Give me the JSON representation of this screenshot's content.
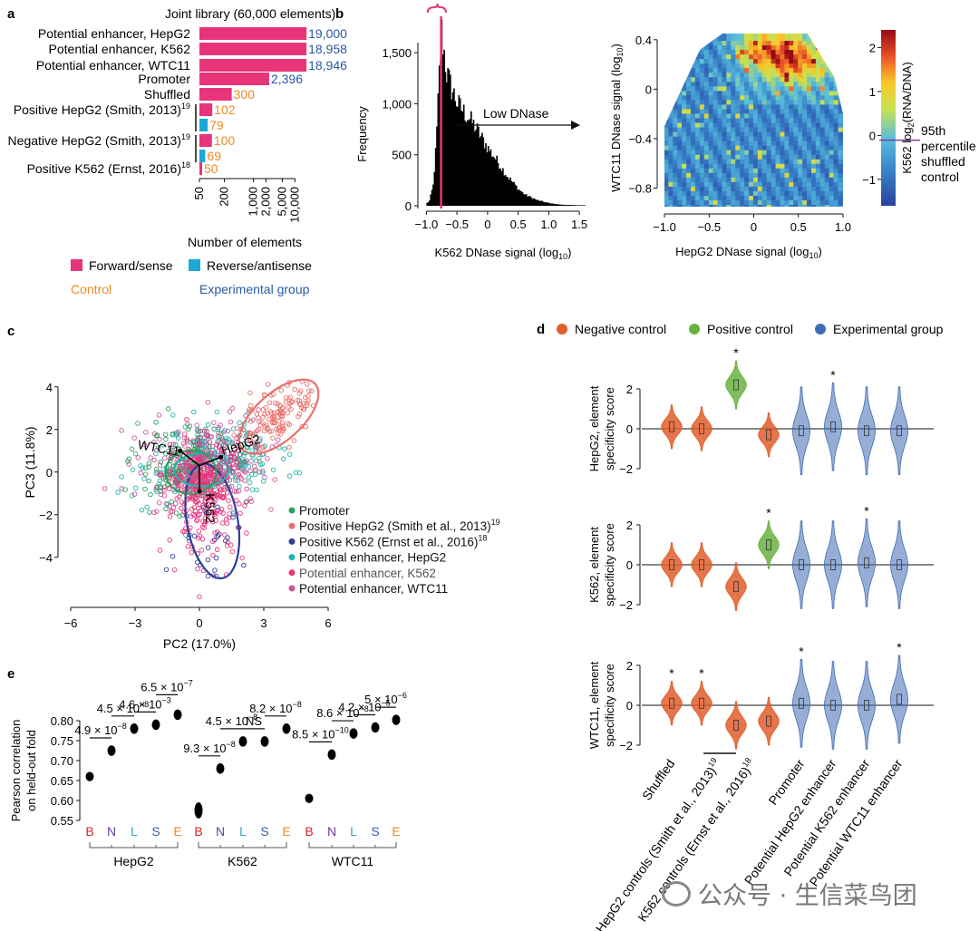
{
  "panel_labels": {
    "a": "a",
    "b": "b",
    "c": "c",
    "d": "d",
    "e": "e"
  },
  "panel_a": {
    "title": "Joint library (60,000 elements)",
    "xlabel": "Number of elements",
    "ticks": [
      "50",
      "200",
      "1,000",
      "2,000",
      "5,000",
      "10,000"
    ],
    "rows": [
      {
        "label": "Potential enhancer, HepG2",
        "sup": "",
        "forward": 19000,
        "reverse": null,
        "fwd_text": "19,000",
        "rev_text": "",
        "group": "experimental"
      },
      {
        "label": "Potential enhancer, K562",
        "sup": "",
        "forward": 18958,
        "reverse": null,
        "fwd_text": "18,958",
        "rev_text": "",
        "group": "experimental"
      },
      {
        "label": "Potential enhancer, WTC11",
        "sup": "",
        "forward": 18946,
        "reverse": null,
        "fwd_text": "18,946",
        "rev_text": "",
        "group": "experimental"
      },
      {
        "label": "Promoter",
        "sup": "",
        "forward": 2396,
        "reverse": null,
        "fwd_text": "2,396",
        "rev_text": "",
        "group": "experimental"
      },
      {
        "label": "Shuffled",
        "sup": "",
        "forward": 300,
        "reverse": null,
        "fwd_text": "300",
        "rev_text": "",
        "group": "control"
      },
      {
        "label": "Positive HepG2 (Smith, 2013)",
        "sup": "19",
        "forward": 102,
        "reverse": 79,
        "fwd_text": "102",
        "rev_text": "79",
        "group": "control"
      },
      {
        "label": "Negative HepG2 (Smith, 2013)",
        "sup": "19",
        "forward": 100,
        "reverse": 69,
        "fwd_text": "100",
        "rev_text": "69",
        "group": "control"
      },
      {
        "label": "Positive K562 (Ernst, 2016)",
        "sup": "18",
        "forward": 50,
        "reverse": null,
        "fwd_text": "50",
        "rev_text": "",
        "group": "control"
      }
    ],
    "legend": {
      "forward": "Forward/sense",
      "reverse": "Reverse/antisense",
      "control": "Control",
      "experimental": "Experimental group"
    }
  },
  "panel_b": {
    "hist_ylabel": "Frequency",
    "hist_xlabel": "K562 DNase signal (log",
    "hist_xlabel_sub": "10",
    "hist_xlabel_end": ")",
    "hist_yticks": [
      "0",
      "500",
      "1,000",
      "1,500"
    ],
    "hist_xticks": [
      "−1.0",
      "−0.5",
      "0",
      "0.5",
      "1.0",
      "1.5"
    ],
    "low_dnase": "Low DNase",
    "heat_xlabel": "HepG2 DNase signal (log",
    "heat_xlabel_sub": "10",
    "heat_ylabel": "WTC11 DNase signal (log",
    "heat_ylabel_sub": "10",
    "heat_xticks": [
      "−1.0",
      "−0.5",
      "0",
      "0.5",
      "1.0"
    ],
    "heat_yticks": [
      "0.4",
      "0",
      "−0.4",
      "−0.8"
    ],
    "cbar_ticks": [
      "2",
      "1",
      "0",
      "−1"
    ],
    "cbar_label": "K562 log",
    "cbar_label_sub": "2",
    "cbar_label_end": "(RNA/DNA)",
    "percentile_note": [
      "95th",
      "percentile",
      "shuffled",
      "control"
    ]
  },
  "panel_c": {
    "xlabel": "PC2 (17.0%)",
    "ylabel": "PC3 (11.8%)",
    "xticks": [
      "−6",
      "−3",
      "0",
      "3",
      "6"
    ],
    "yticks": [
      "4",
      "2",
      "0",
      "−2",
      "−4"
    ],
    "arrows": [
      "WTC11",
      "HepG2",
      "K562"
    ],
    "legend": [
      {
        "label": "Promoter",
        "sup": "",
        "color": "#2e9e5b"
      },
      {
        "label": "Positive HepG2 (Smith et al., 2013)",
        "sup": "19",
        "color": "#e8706a"
      },
      {
        "label": "Positive K562 (Ernst et al., 2016)",
        "sup": "18",
        "color": "#2d3f9a"
      },
      {
        "label": "Potential enhancer, HepG2",
        "sup": "",
        "color": "#1fb5ad"
      },
      {
        "label": "Potential enhancer, K562",
        "sup": "",
        "color": "#e8357a"
      },
      {
        "label": "Potential enhancer, WTC11",
        "sup": "",
        "color": "#c9559d"
      }
    ]
  },
  "panel_d": {
    "legend": [
      {
        "label": "Negative control",
        "color": "#e15d2b"
      },
      {
        "label": "Positive control",
        "color": "#6ab23f"
      },
      {
        "label": "Experimental group",
        "color": "#3f6bb4"
      }
    ],
    "ylabels": [
      [
        "HepG2, element",
        "specificity score"
      ],
      [
        "K562, element",
        "specificity score"
      ],
      [
        "WTC11, element",
        "specificity score"
      ]
    ],
    "yticks": [
      "2",
      "0",
      "−2"
    ],
    "categories": [
      "Shuffled",
      "HepG2 controls (Smith et al., 2013)",
      "K562 controls (Ernst et al., 2016)",
      "Promoter",
      "Potential HepG2 enhancer",
      "Potential K562 enhancer",
      "Potential WTC11 enhancer"
    ],
    "category_sups": [
      "",
      "19",
      "18",
      "",
      "",
      "",
      ""
    ],
    "star": "*"
  },
  "panel_e": {
    "ylabel": [
      "Pearson correlation",
      "on held-out fold"
    ],
    "yticks": [
      "0.80",
      "0.75",
      "0.70",
      "0.65",
      "0.60",
      "0.55"
    ],
    "model_letters": [
      "B",
      "N",
      "L",
      "S",
      "E"
    ],
    "model_colors": [
      "#d62728",
      "#6a3d9a",
      "#3aa0c8",
      "#3f5aa8",
      "#f08a24"
    ],
    "groups": [
      "HepG2",
      "K562",
      "WTC11"
    ],
    "pvalues": {
      "hepg2": [
        "4.9 × 10",
        "−8",
        "4.5 × 10",
        "−8",
        "4.6 × 10",
        "−3",
        "6.5 × 10",
        "−7"
      ],
      "k562": [
        "9.3 × 10",
        "−8",
        "4.5 × 10",
        "−8",
        "NS",
        "",
        "8.2 × 10",
        "−8"
      ],
      "wtc11": [
        "8.5 × 10",
        "−10",
        "8.6 × 10",
        "−8",
        "4.2 × 10",
        "−5",
        "5 × 10",
        "−6"
      ]
    }
  },
  "chart_data": [
    {
      "type": "bar",
      "title": "Joint library (60,000 elements)",
      "xlabel": "Number of elements",
      "categories": [
        "Potential enhancer, HepG2",
        "Potential enhancer, K562",
        "Potential enhancer, WTC11",
        "Promoter",
        "Shuffled",
        "Positive HepG2 (Smith, 2013)",
        "Negative HepG2 (Smith, 2013)",
        "Positive K562 (Ernst, 2016)"
      ],
      "series": [
        {
          "name": "Forward/sense",
          "values": [
            19000,
            18958,
            18946,
            2396,
            300,
            102,
            100,
            50
          ]
        },
        {
          "name": "Reverse/antisense",
          "values": [
            null,
            null,
            null,
            null,
            null,
            79,
            69,
            null
          ]
        }
      ],
      "xscale": "log"
    },
    {
      "type": "bar",
      "xlabel": "K562 DNase signal (log10)",
      "ylabel": "Frequency",
      "x": [
        -0.96,
        -0.9,
        -0.85,
        -0.8,
        -0.76,
        -0.72,
        -0.68,
        -0.6,
        -0.5,
        -0.4,
        -0.3,
        -0.2,
        -0.1,
        0,
        0.1,
        0.2,
        0.3,
        0.4,
        0.5,
        0.6,
        0.8,
        1.0,
        1.2,
        1.5
      ],
      "values": [
        50,
        200,
        600,
        1300,
        1700,
        1500,
        1300,
        1150,
        1000,
        920,
        850,
        760,
        660,
        560,
        480,
        390,
        300,
        230,
        160,
        110,
        55,
        25,
        10,
        5
      ],
      "xlim": [
        -1.05,
        1.75
      ],
      "ylim": [
        0,
        1750
      ]
    },
    {
      "type": "heatmap",
      "xlabel": "HepG2 DNase signal (log10)",
      "ylabel": "WTC11 DNase signal (log10)",
      "xlim": [
        -1.0,
        1.0
      ],
      "ylim": [
        -0.95,
        0.45
      ],
      "color_label": "K562 log2(RNA/DNA)",
      "color_range": [
        -1.6,
        2.4
      ]
    },
    {
      "type": "scatter",
      "xlabel": "PC2 (17.0%)",
      "ylabel": "PC3 (11.8%)",
      "xlim": [
        -6,
        6
      ],
      "ylim": [
        -5.5,
        4.5
      ]
    },
    {
      "type": "violin",
      "categories": [
        "Shuffled",
        "HepG2 controls (Smith et al., 2013)",
        "K562 controls (Ernst et al., 2016)",
        "Promoter",
        "Potential HepG2 enhancer",
        "Potential K562 enhancer",
        "Potential WTC11 enhancer"
      ],
      "panels": [
        {
          "ylabel": "HepG2, element specificity score",
          "medians": [
            0.1,
            0.0,
            2.2,
            -0.3,
            -0.1,
            0.1,
            -0.1,
            -0.1
          ],
          "groups": [
            "neg",
            "neg",
            "pos",
            "neg",
            "exp",
            "exp",
            "exp",
            "exp"
          ],
          "stars": [
            false,
            false,
            true,
            false,
            false,
            true,
            false,
            false
          ]
        },
        {
          "ylabel": "K562, element specificity score",
          "medians": [
            0.0,
            0.0,
            -1.1,
            1.0,
            0.0,
            0.0,
            0.1,
            0.0
          ],
          "groups": [
            "neg",
            "neg",
            "neg",
            "pos",
            "exp",
            "exp",
            "exp",
            "exp"
          ],
          "stars": [
            false,
            false,
            false,
            true,
            false,
            false,
            true,
            false
          ]
        },
        {
          "ylabel": "WTC11, element specificity score",
          "medians": [
            0.1,
            0.1,
            -1.0,
            -0.8,
            0.1,
            0.0,
            0.0,
            0.3
          ],
          "groups": [
            "neg",
            "neg",
            "neg",
            "neg",
            "exp",
            "exp",
            "exp",
            "exp"
          ],
          "stars": [
            true,
            true,
            false,
            false,
            true,
            false,
            false,
            true
          ]
        }
      ],
      "ylim": [
        -2,
        2.6
      ]
    },
    {
      "type": "violin",
      "ylabel": "Pearson correlation on held-out fold",
      "groups": [
        "HepG2",
        "K562",
        "WTC11"
      ],
      "models": [
        "B",
        "N",
        "L",
        "S",
        "E"
      ],
      "values": [
        [
          0.66,
          0.725,
          0.78,
          0.79,
          0.815
        ],
        [
          0.575,
          0.68,
          0.748,
          0.748,
          0.78
        ],
        [
          0.605,
          0.715,
          0.768,
          0.783,
          0.802
        ]
      ],
      "ylim": [
        0.55,
        0.81
      ]
    }
  ]
}
